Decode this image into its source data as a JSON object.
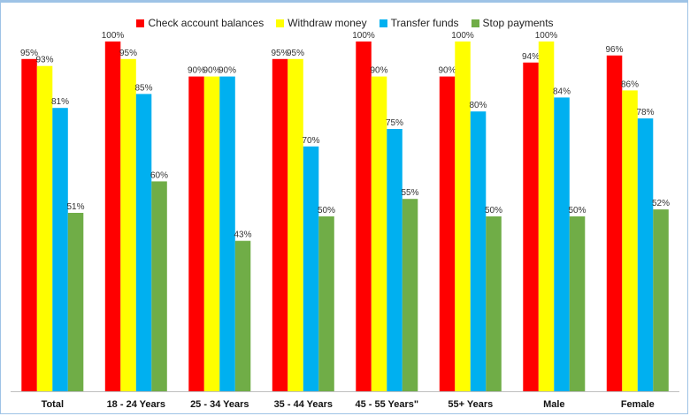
{
  "chart_data": {
    "type": "bar",
    "title": "",
    "xlabel": "",
    "ylabel": "",
    "ylim": [
      0,
      100
    ],
    "legend_position": "top",
    "grid": false,
    "categories": [
      "Total",
      "18 - 24 Years",
      "25 - 34 Years",
      "35 - 44 Years",
      "45 - 55 Years\"",
      "55+ Years",
      "Male",
      "Female"
    ],
    "series": [
      {
        "name": "Check account balances",
        "color": "#ff0000",
        "values": [
          95,
          100,
          90,
          95,
          100,
          90,
          94,
          96
        ],
        "labels": [
          "95%",
          "100%",
          "90%",
          "95%",
          "100%",
          "90%",
          "94%",
          "96%"
        ]
      },
      {
        "name": "Withdraw money",
        "color": "#ffff00",
        "values": [
          93,
          95,
          90,
          95,
          90,
          100,
          100,
          86
        ],
        "labels": [
          "93%",
          "95%",
          "90%",
          "95%",
          "90%",
          "100%",
          "100%",
          "86%"
        ]
      },
      {
        "name": "Transfer funds",
        "color": "#00b0f0",
        "values": [
          81,
          85,
          90,
          70,
          75,
          80,
          84,
          78
        ],
        "labels": [
          "81%",
          "85%",
          "90%",
          "70%",
          "75%",
          "80%",
          "84%",
          "78%"
        ]
      },
      {
        "name": "Stop payments",
        "color": "#70ad47",
        "values": [
          51,
          60,
          43,
          50,
          55,
          50,
          50,
          52
        ],
        "labels": [
          "51%",
          "60%",
          "43%",
          "50%",
          "55%",
          "50%",
          "50%",
          "52%"
        ]
      }
    ]
  }
}
